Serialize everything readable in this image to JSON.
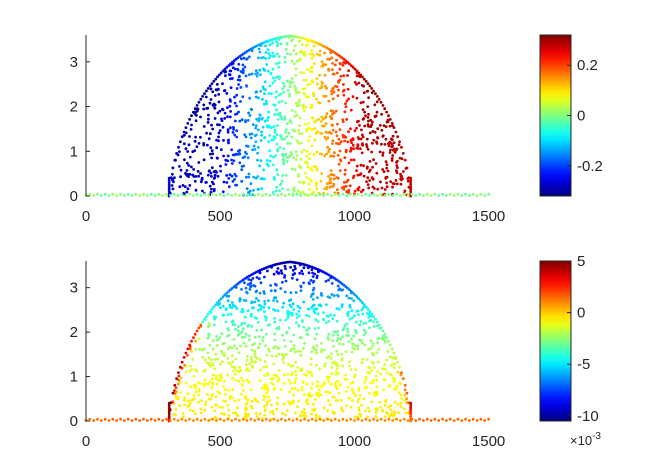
{
  "chart_data": [
    {
      "type": "scatter",
      "title": "",
      "xlabel": "",
      "ylabel": "",
      "xlim": [
        0,
        1550
      ],
      "ylim": [
        0,
        3.6
      ],
      "xticks": [
        "0",
        "500",
        "1000",
        "1500"
      ],
      "yticks": [
        "0",
        "1",
        "2",
        "3"
      ],
      "grid": false,
      "colormap": "jet",
      "colorbar": {
        "range": [
          -0.32,
          0.32
        ],
        "ticks": [
          0.2,
          0,
          -0.2
        ],
        "tick_labels": [
          "0.2",
          "0",
          "-0.2"
        ],
        "exponent_label": ""
      },
      "geometry": {
        "baseline_x": [
          0,
          1500
        ],
        "dome_base_x": [
          310,
          1210
        ],
        "dome_peak_x": 760,
        "dome_peak_y": 3.58
      },
      "field_description": "left half negative (blue), right half positive (red), ~0 near center line x=760"
    },
    {
      "type": "scatter",
      "title": "",
      "xlabel": "",
      "ylabel": "",
      "xlim": [
        0,
        1550
      ],
      "ylim": [
        0,
        3.6
      ],
      "xticks": [
        "0",
        "500",
        "1000",
        "1500"
      ],
      "yticks": [
        "0",
        "1",
        "2",
        "3"
      ],
      "grid": false,
      "colormap": "jet",
      "colorbar": {
        "range": [
          -0.0105,
          0.005
        ],
        "ticks": [
          0.005,
          0,
          -0.005,
          -0.01
        ],
        "tick_labels": [
          "5",
          "0",
          "-5",
          "-10"
        ],
        "exponent_label": "×10",
        "exponent_power": "-3"
      },
      "geometry": {
        "baseline_x": [
          0,
          1500
        ],
        "dome_base_x": [
          310,
          1210
        ],
        "dome_peak_x": 760,
        "dome_peak_y": 3.58
      },
      "field_description": "interior ~0 (yellow), top region negative (cyan/blue), lower-left edge positive (red)"
    }
  ]
}
